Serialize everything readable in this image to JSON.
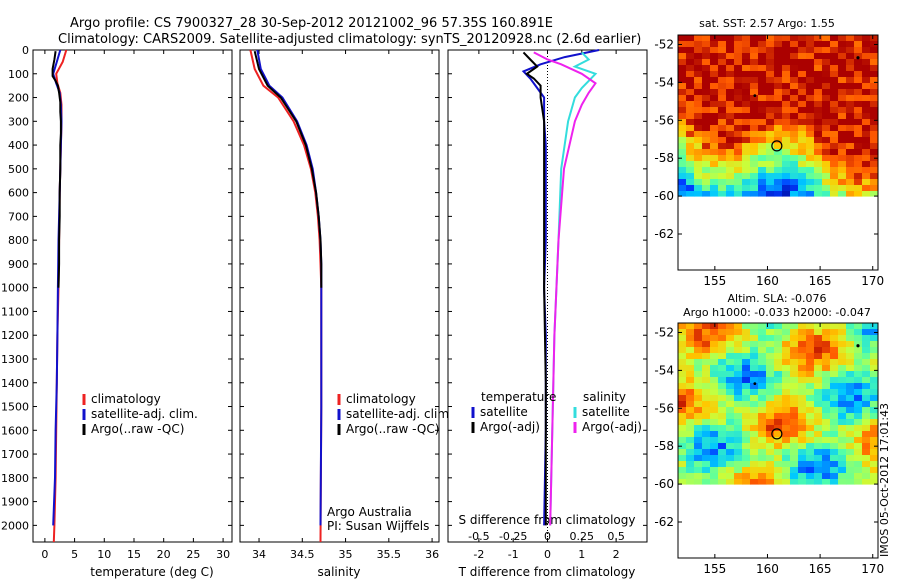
{
  "title_line1": "Argo profile: CS 7900327_28 30-Sep-2012 20121002_96 57.35S 160.891E",
  "title_line2": "Climatology: CARS2009. Satellite-adjusted climatology: synTS_20120928.nc (2.6d earlier)",
  "footer": "IMOS 05-Oct-2012 17:01:43",
  "colors": {
    "climatology": "#ee2222",
    "satellite": "#1111cc",
    "argo": "#000000",
    "sat_salinity": "#33dddd",
    "argo_salinity": "#ee22ee"
  },
  "chart_data": [
    {
      "type": "line",
      "xlabel": "temperature (deg C)",
      "xticks": [
        "0",
        "5",
        "10",
        "15",
        "20",
        "25",
        "30"
      ],
      "xlim": [
        -2,
        31.5
      ],
      "ylim": [
        2070,
        0
      ],
      "yticks": [
        "0",
        "100",
        "200",
        "300",
        "400",
        "500",
        "600",
        "700",
        "800",
        "900",
        "1000",
        "1100",
        "1200",
        "1300",
        "1400",
        "1500",
        "1600",
        "1700",
        "1800",
        "1900",
        "2000"
      ],
      "legend": [
        "climatology",
        "satellite-adj. clim.",
        "Argo(..raw -QC)"
      ],
      "series": [
        {
          "name": "climatology",
          "depth": [
            0,
            50,
            100,
            140,
            180,
            230,
            300,
            400,
            600,
            800,
            1000,
            1200,
            1400,
            1600,
            1800,
            2000,
            2070
          ],
          "values": [
            3.6,
            3.0,
            1.9,
            2.1,
            2.6,
            2.8,
            2.8,
            2.7,
            2.5,
            2.4,
            2.3,
            2.1,
            2.0,
            1.9,
            1.8,
            1.6,
            1.5
          ]
        },
        {
          "name": "satellite-adj. clim.",
          "depth": [
            0,
            50,
            100,
            140,
            180,
            230,
            300,
            400,
            600,
            800,
            1000,
            1200,
            1400,
            1600,
            1800,
            2000
          ],
          "values": [
            2.6,
            2.0,
            1.4,
            1.9,
            2.5,
            2.7,
            2.8,
            2.7,
            2.5,
            2.3,
            2.2,
            2.1,
            2.0,
            1.8,
            1.7,
            1.4
          ]
        },
        {
          "name": "Argo(..raw -QC)",
          "depth": [
            5,
            40,
            80,
            110,
            130,
            150,
            180,
            220,
            260,
            300,
            350,
            400,
            500,
            600,
            700,
            800,
            900,
            1000
          ],
          "values": [
            1.8,
            1.6,
            1.3,
            1.3,
            1.8,
            2.2,
            2.4,
            2.6,
            2.6,
            2.7,
            2.7,
            2.6,
            2.6,
            2.5,
            2.5,
            2.4,
            2.4,
            2.3
          ]
        }
      ]
    },
    {
      "type": "line",
      "xlabel": "salinity",
      "xticks": [
        "34",
        "34.5",
        "35",
        "35.5",
        "36"
      ],
      "xlim": [
        33.78,
        36.08
      ],
      "ylim": [
        2070,
        0
      ],
      "legend": [
        "climatology",
        "satellite-adj. clim.",
        "Argo(..raw -QC)"
      ],
      "annotation": [
        "Argo Australia",
        "PI: Susan Wijffels"
      ],
      "series": [
        {
          "name": "climatology",
          "depth": [
            0,
            80,
            150,
            200,
            300,
            400,
            500,
            600,
            700,
            800,
            900,
            1000,
            1200,
            1500,
            2070
          ],
          "values": [
            33.9,
            33.95,
            34.05,
            34.22,
            34.4,
            34.52,
            34.6,
            34.65,
            34.68,
            34.7,
            34.71,
            34.72,
            34.72,
            34.72,
            34.71
          ]
        },
        {
          "name": "satellite-adj. clim.",
          "depth": [
            0,
            80,
            150,
            200,
            300,
            400,
            500,
            600,
            700,
            800,
            900,
            1000,
            1200,
            1500,
            2000
          ],
          "values": [
            33.98,
            34.02,
            34.12,
            34.27,
            34.44,
            34.55,
            34.62,
            34.66,
            34.69,
            34.71,
            34.72,
            34.72,
            34.72,
            34.72,
            34.71
          ]
        },
        {
          "name": "Argo(..raw -QC)",
          "depth": [
            5,
            80,
            150,
            200,
            300,
            400,
            500,
            600,
            700,
            800,
            900,
            1000
          ],
          "values": [
            33.95,
            34.0,
            34.1,
            34.25,
            34.43,
            34.54,
            34.61,
            34.66,
            34.69,
            34.71,
            34.72,
            34.72
          ]
        }
      ]
    },
    {
      "type": "line",
      "xlabel": "T difference from climatology",
      "xlabel_top": "S difference from climatology",
      "xticks": [
        "-2",
        "-1",
        "0",
        "1",
        "2"
      ],
      "xticks_s": [
        "-0.5",
        "-0.25",
        "0",
        "0.25",
        "0.5"
      ],
      "xlim": [
        -2.9,
        2.9
      ],
      "ylim": [
        2070,
        0
      ],
      "legend_left": [
        "temperature",
        "satellite",
        "Argo(-adj)"
      ],
      "legend_right": [
        "salinity",
        "satellite",
        "Argo(-adj)"
      ],
      "series": [
        {
          "name": "temperature satellite",
          "depth": [
            0,
            30,
            60,
            90,
            120,
            160,
            200,
            300,
            400,
            600,
            800,
            1000,
            1200,
            1600,
            2000
          ],
          "values": [
            1.5,
            0.5,
            -0.2,
            -0.7,
            -0.5,
            -0.3,
            -0.1,
            -0.1,
            -0.05,
            -0.05,
            -0.05,
            -0.1,
            -0.05,
            -0.05,
            -0.1
          ]
        },
        {
          "name": "temperature Argo(-adj)",
          "depth": [
            10,
            40,
            70,
            100,
            120,
            150,
            200,
            300,
            400,
            600,
            800,
            1000,
            1400,
            1800,
            2000
          ],
          "values": [
            -0.7,
            -0.5,
            -0.3,
            -0.6,
            -0.4,
            -0.2,
            -0.2,
            -0.1,
            -0.1,
            -0.1,
            -0.1,
            -0.1,
            -0.05,
            -0.05,
            -0.05
          ]
        },
        {
          "name": "salinity satellite",
          "depth": [
            10,
            40,
            70,
            100,
            130,
            160,
            200,
            300,
            500,
            800,
            1200,
            2000
          ],
          "values": [
            0.25,
            0.3,
            0.2,
            0.35,
            0.3,
            0.25,
            0.2,
            0.15,
            0.1,
            0.08,
            0.05,
            0.02
          ]
        },
        {
          "name": "salinity Argo(-adj)",
          "depth": [
            10,
            40,
            60,
            100,
            140,
            180,
            230,
            300,
            500,
            800,
            1200,
            2000
          ],
          "values": [
            -0.1,
            0.0,
            0.1,
            0.25,
            0.35,
            0.3,
            0.25,
            0.2,
            0.12,
            0.08,
            0.05,
            0.02
          ]
        }
      ]
    },
    {
      "type": "heatmap",
      "title": "sat. SST: 2.57  Argo: 1.55",
      "xticks": [
        "155",
        "160",
        "165",
        "170"
      ],
      "yticks": [
        "-52",
        "-54",
        "-56",
        "-58",
        "-60",
        "-62"
      ],
      "xlim": [
        151.5,
        170.5
      ],
      "ylim": [
        -63.9,
        -51.5
      ],
      "marker": [
        160.891,
        -57.35
      ]
    },
    {
      "type": "heatmap",
      "title_line1": "Altim. SLA: -0.076",
      "title_line2": "Argo h1000: -0.033  h2000: -0.047",
      "xticks": [
        "155",
        "160",
        "165",
        "170"
      ],
      "yticks": [
        "-52",
        "-54",
        "-56",
        "-58",
        "-60",
        "-62"
      ],
      "xlim": [
        151.5,
        170.5
      ],
      "ylim": [
        -63.9,
        -51.5
      ],
      "marker": [
        160.891,
        -57.35
      ]
    }
  ]
}
